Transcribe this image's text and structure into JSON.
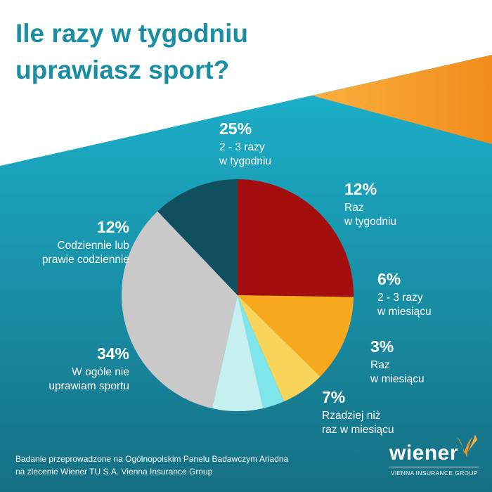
{
  "title": [
    "Ile razy w tygodniu",
    "uprawiasz sport?"
  ],
  "colors": {
    "title": "#1a8ea2",
    "background_top": "#ffffff",
    "background_gradient": [
      "#1cb5ce",
      "#156f84"
    ],
    "accent_orange": "#f7941d"
  },
  "chart_data": {
    "type": "pie",
    "start": "12 o'clock, clockwise",
    "slices": [
      {
        "value": 25,
        "pct_label": "25%",
        "label_lines": [
          "2 - 3 razy",
          "w tygodniu"
        ],
        "color": "#a50e0e"
      },
      {
        "value": 12,
        "pct_label": "12%",
        "label_lines": [
          "Raz",
          "w tygodniu"
        ],
        "color": "#f7a81c"
      },
      {
        "value": 6,
        "pct_label": "6%",
        "label_lines": [
          "2 - 3 razy",
          "w miesiącu"
        ],
        "color": "#f8d45a"
      },
      {
        "value": 3,
        "pct_label": "3%",
        "label_lines": [
          "Raz",
          "w miesiącu"
        ],
        "color": "#7ee6ea"
      },
      {
        "value": 7,
        "pct_label": "7%",
        "label_lines": [
          "Rzadziej niż",
          "raz w miesiącu"
        ],
        "color": "#c6f0f0"
      },
      {
        "value": 34,
        "pct_label": "34%",
        "label_lines": [
          "W ogóle nie",
          "uprawiam sportu"
        ],
        "color": "#c9c9c9"
      },
      {
        "value": 12,
        "pct_label": "12%",
        "label_lines": [
          "Codziennie lub",
          "prawie codziennie"
        ],
        "color": "#0f4f5e"
      }
    ]
  },
  "footer": [
    "Badanie przeprowadzone na Ogólnopolskim Panelu Badawczym Ariadna",
    "na zlecenie Wiener TU S.A. Vienna Insurance Group"
  ],
  "brand": {
    "name": "wiener",
    "tagline": "VIENNA INSURANCE GROUP"
  }
}
